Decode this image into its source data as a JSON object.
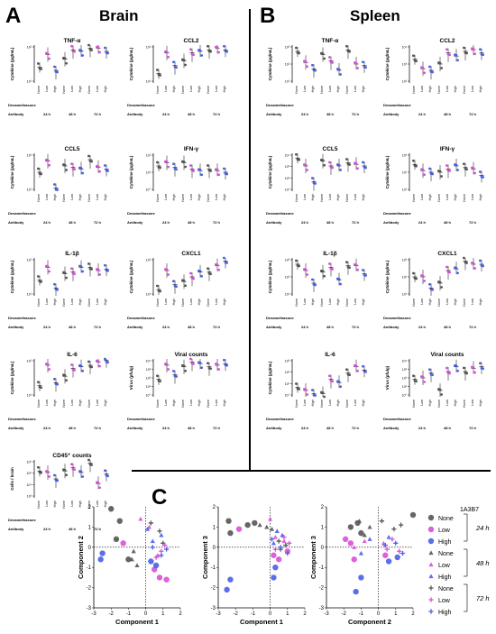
{
  "panels": {
    "A": {
      "letter": "A",
      "title": "Brain"
    },
    "B": {
      "letter": "B",
      "title": "Spleen"
    },
    "C": {
      "letter": "C"
    }
  },
  "row_labels": {
    "dexamethasone": "Dexamethasone",
    "antibody": "Antibody"
  },
  "dose_levels": [
    "None",
    "Low",
    "High"
  ],
  "timepoints": [
    "24 h",
    "48 h",
    "72 h"
  ],
  "colors": {
    "none": "#555555",
    "low": "#d94fd9",
    "high": "#4a5ee8",
    "axis": "#000000"
  },
  "chart_data": [
    {
      "type": "scatter",
      "panel": "A",
      "title": "TNF-α",
      "ylabel": "Cytokine (pg/mL)",
      "log_y": true,
      "ticks": [
        "10²",
        "10¹"
      ],
      "groups": [
        [
          1.4,
          2.2,
          1.2
        ],
        [
          1.9,
          2.5,
          2.4
        ],
        [
          2.6,
          2.6,
          2.4
        ]
      ]
    },
    {
      "type": "scatter",
      "panel": "A",
      "title": "CCL2",
      "ylabel": "Cytokine (pg/mL)",
      "log_y": true,
      "ticks": [
        "10²",
        "10¹"
      ],
      "groups": [
        [
          1.0,
          2.3,
          1.5
        ],
        [
          1.8,
          2.3,
          2.4
        ],
        [
          2.5,
          2.6,
          2.5
        ]
      ]
    },
    {
      "type": "scatter",
      "panel": "A",
      "title": "CCL5",
      "ylabel": "Cytokine (pg/mL)",
      "log_y": true,
      "ticks": [
        "10²",
        "10¹"
      ],
      "groups": [
        [
          1.6,
          2.3,
          0.6
        ],
        [
          2.0,
          1.9,
          1.8
        ],
        [
          2.4,
          1.9,
          1.8
        ]
      ]
    },
    {
      "type": "scatter",
      "panel": "A",
      "title": "IFN-γ",
      "ylabel": "Cytokine (pg/mL)",
      "log_y": true,
      "ticks": [
        "10²",
        "10¹",
        "10°"
      ],
      "groups": [
        [
          2.0,
          2.2,
          1.9
        ],
        [
          2.2,
          1.8,
          1.7
        ],
        [
          1.8,
          1.7,
          1.6
        ]
      ]
    },
    {
      "type": "scatter",
      "panel": "A",
      "title": "IL-1β",
      "ylabel": "Cytokine (pg/mL)",
      "log_y": true,
      "ticks": [
        "10²",
        "10¹"
      ],
      "groups": [
        [
          1.4,
          2.2,
          0.9
        ],
        [
          1.8,
          1.9,
          2.2
        ],
        [
          2.2,
          2.0,
          2.1
        ]
      ]
    },
    {
      "type": "scatter",
      "panel": "A",
      "title": "CXCL1",
      "ylabel": "Cytokine (pg/mL)",
      "log_y": true,
      "ticks": [
        "10²",
        "10¹"
      ],
      "groups": [
        [
          0.8,
          2.0,
          1.1
        ],
        [
          1.3,
          1.6,
          1.9
        ],
        [
          1.9,
          2.3,
          2.6
        ]
      ]
    },
    {
      "type": "scatter",
      "panel": "A",
      "title": "IL-6",
      "ylabel": "Cytokine (pg/mL)",
      "log_y": true,
      "ticks": [
        "10²",
        "10¹"
      ],
      "groups": [
        [
          1.1,
          2.4,
          1.3
        ],
        [
          1.7,
          2.2,
          2.3
        ],
        [
          2.4,
          2.6,
          2.7
        ]
      ]
    },
    {
      "type": "scatter",
      "panel": "A",
      "title": "Viral counts",
      "ylabel": "Virus (pfu/g)",
      "log_y": true,
      "ticks": [
        "10⁴",
        "10³",
        "10²",
        "10¹",
        "10°"
      ],
      "groups": [
        [
          1.5,
          2.4,
          1.8
        ],
        [
          2.3,
          2.6,
          2.5
        ],
        [
          2.3,
          2.4,
          2.5
        ]
      ]
    },
    {
      "type": "scatter",
      "panel": "A",
      "title": "CD45⁺ counts",
      "ylabel": "Cells / brain",
      "log_y": true,
      "ticks": [
        "10⁶",
        "10⁵",
        "10⁴",
        "10³"
      ],
      "groups": [
        [
          2.1,
          2.0,
          1.6
        ],
        [
          2.1,
          2.3,
          2.0
        ],
        [
          2.6,
          1.3,
          1.9
        ]
      ]
    },
    {
      "type": "scatter",
      "panel": "B",
      "title": "TNF-α",
      "ylabel": "Cytokine (pg/mL)",
      "log_y": true,
      "ticks": [
        "10³",
        "10²",
        "10¹"
      ],
      "groups": [
        [
          2.4,
          1.7,
          1.3
        ],
        [
          2.2,
          1.8,
          1.2
        ],
        [
          2.5,
          1.6,
          1.5
        ]
      ]
    },
    {
      "type": "scatter",
      "panel": "B",
      "title": "CCL2",
      "ylabel": "Cytokine (pg/mL)",
      "log_y": true,
      "ticks": [
        "10⁴",
        "10³",
        "10²"
      ],
      "groups": [
        [
          1.9,
          1.3,
          1.2
        ],
        [
          1.6,
          2.3,
          2.1
        ],
        [
          2.4,
          2.5,
          2.3
        ]
      ]
    },
    {
      "type": "scatter",
      "panel": "B",
      "title": "CCL5",
      "ylabel": "Cytokine (pg/mL)",
      "log_y": true,
      "ticks": [
        "10⁴",
        "10³",
        "10²",
        "10¹"
      ],
      "groups": [
        [
          2.5,
          2.0,
          1.0
        ],
        [
          2.3,
          2.0,
          2.0
        ],
        [
          2.2,
          2.1,
          2.0
        ]
      ]
    },
    {
      "type": "scatter",
      "panel": "B",
      "title": "IFN-γ",
      "ylabel": "Cytokine (pg/mL)",
      "log_y": true,
      "ticks": [
        "10³",
        "10²",
        "10¹"
      ],
      "groups": [
        [
          2.1,
          1.7,
          1.6
        ],
        [
          1.6,
          1.8,
          2.0
        ],
        [
          1.9,
          1.8,
          1.4
        ]
      ]
    },
    {
      "type": "scatter",
      "panel": "B",
      "title": "IL-1β",
      "ylabel": "Cytokine (pg/mL)",
      "log_y": true,
      "ticks": [
        "10³",
        "10²",
        "10¹"
      ],
      "groups": [
        [
          2.4,
          2.0,
          1.2
        ],
        [
          1.9,
          2.2,
          1.4
        ],
        [
          2.3,
          2.3,
          1.8
        ]
      ]
    },
    {
      "type": "scatter",
      "panel": "B",
      "title": "CXCL1",
      "ylabel": "Cytokine (pg/mL)",
      "log_y": true,
      "ticks": [
        "10³",
        "10²",
        "10¹"
      ],
      "groups": [
        [
          1.6,
          1.6,
          0.9
        ],
        [
          1.2,
          2.0,
          2.1
        ],
        [
          2.6,
          2.4,
          2.4
        ]
      ]
    },
    {
      "type": "scatter",
      "panel": "B",
      "title": "IL-6",
      "ylabel": "Cytokine (pg/mL)",
      "log_y": true,
      "ticks": [
        "10³",
        "10²",
        "10¹",
        "10°"
      ],
      "groups": [
        [
          1.0,
          0.8,
          0.6
        ],
        [
          0.6,
          1.5,
          1.3
        ],
        [
          1.9,
          2.3,
          2.1
        ]
      ]
    },
    {
      "type": "scatter",
      "panel": "B",
      "title": "Viral counts",
      "ylabel": "Virus (pfu/g)",
      "log_y": true,
      "ticks": [
        "10⁴",
        "10³",
        "10²",
        "10¹",
        "10°"
      ],
      "groups": [
        [
          1.5,
          1.6,
          1.9
        ],
        [
          0.8,
          2.0,
          2.3
        ],
        [
          2.0,
          2.2,
          2.3
        ]
      ]
    }
  ],
  "pca": {
    "ylabels": [
      "Component 2",
      "Component 3",
      "Component 3"
    ],
    "xlabels": [
      "Component 1",
      "Component 1",
      "Component 2"
    ],
    "x_ticks": [
      "-3",
      "-2",
      "-1",
      "0",
      "1",
      "2"
    ],
    "y_ticks": [
      "2",
      "1",
      "0",
      "-1",
      "-2",
      "-3"
    ],
    "plots": [
      {
        "points": [
          {
            "x": -2.0,
            "y": 1.9,
            "g": 0
          },
          {
            "x": -1.5,
            "y": 1.3,
            "g": 0
          },
          {
            "x": -1.0,
            "y": -0.6,
            "g": 0
          },
          {
            "x": -1.7,
            "y": 0.4,
            "g": 0
          },
          {
            "x": -1.3,
            "y": 0.2,
            "g": 1
          },
          {
            "x": 0.5,
            "y": -1.1,
            "g": 1
          },
          {
            "x": 0.8,
            "y": -1.5,
            "g": 1
          },
          {
            "x": 1.2,
            "y": -1.6,
            "g": 1
          },
          {
            "x": -2.5,
            "y": -0.3,
            "g": 2
          },
          {
            "x": -2.6,
            "y": -0.6,
            "g": 2
          },
          {
            "x": 0.3,
            "y": -0.7,
            "g": 2
          },
          {
            "x": 0.6,
            "y": -0.9,
            "g": 2
          },
          {
            "x": -0.7,
            "y": -0.2,
            "g": 3
          },
          {
            "x": -0.5,
            "y": -0.9,
            "g": 3
          },
          {
            "x": -0.8,
            "y": -0.6,
            "g": 3
          },
          {
            "x": -0.3,
            "y": 1.4,
            "g": 4
          },
          {
            "x": 0.2,
            "y": 1.0,
            "g": 4
          },
          {
            "x": 0.7,
            "y": -0.4,
            "g": 4
          },
          {
            "x": 0.1,
            "y": 0.9,
            "g": 5
          },
          {
            "x": 0.4,
            "y": 0.3,
            "g": 5
          },
          {
            "x": 0.9,
            "y": 0.6,
            "g": 5
          },
          {
            "x": 0.3,
            "y": 1.2,
            "g": 6
          },
          {
            "x": 0.8,
            "y": 0.8,
            "g": 6
          },
          {
            "x": 1.0,
            "y": 0.2,
            "g": 6
          },
          {
            "x": 0.6,
            "y": -0.5,
            "g": 7
          },
          {
            "x": 0.9,
            "y": -0.2,
            "g": 7
          },
          {
            "x": 1.1,
            "y": 0.1,
            "g": 7
          },
          {
            "x": 0.4,
            "y": 0.0,
            "g": 8
          },
          {
            "x": 0.9,
            "y": -0.4,
            "g": 8
          },
          {
            "x": 1.2,
            "y": -0.1,
            "g": 8
          }
        ]
      },
      {
        "points": [
          {
            "x": -2.4,
            "y": 1.3,
            "g": 0
          },
          {
            "x": -2.3,
            "y": 0.7,
            "g": 0
          },
          {
            "x": -1.3,
            "y": 1.1,
            "g": 0
          },
          {
            "x": -0.9,
            "y": 1.2,
            "g": 0
          },
          {
            "x": -1.8,
            "y": 0.9,
            "g": 1
          },
          {
            "x": 0.2,
            "y": -0.4,
            "g": 1
          },
          {
            "x": 0.5,
            "y": -0.6,
            "g": 1
          },
          {
            "x": 1.0,
            "y": -0.2,
            "g": 1
          },
          {
            "x": -2.3,
            "y": -1.6,
            "g": 2
          },
          {
            "x": -2.5,
            "y": -2.1,
            "g": 2
          },
          {
            "x": 0.3,
            "y": -1.0,
            "g": 2
          },
          {
            "x": 0.2,
            "y": -1.5,
            "g": 2
          },
          {
            "x": -0.2,
            "y": 1.0,
            "g": 3
          },
          {
            "x": -0.6,
            "y": 1.1,
            "g": 3
          },
          {
            "x": 0.1,
            "y": 0.9,
            "g": 3
          },
          {
            "x": 0.0,
            "y": 1.4,
            "g": 4
          },
          {
            "x": 0.3,
            "y": 0.5,
            "g": 4
          },
          {
            "x": 0.8,
            "y": 0.3,
            "g": 4
          },
          {
            "x": 0.4,
            "y": 0.8,
            "g": 5
          },
          {
            "x": 0.7,
            "y": 0.6,
            "g": 5
          },
          {
            "x": 0.2,
            "y": 0.2,
            "g": 5
          },
          {
            "x": 0.5,
            "y": 0.3,
            "g": 6
          },
          {
            "x": 0.9,
            "y": 0.1,
            "g": 6
          },
          {
            "x": 0.6,
            "y": -0.1,
            "g": 6
          },
          {
            "x": 0.8,
            "y": 0.5,
            "g": 7
          },
          {
            "x": 0.3,
            "y": -0.1,
            "g": 7
          },
          {
            "x": 1.1,
            "y": 0.2,
            "g": 7
          },
          {
            "x": 0.1,
            "y": 0.4,
            "g": 8
          },
          {
            "x": 0.6,
            "y": 0.0,
            "g": 8
          },
          {
            "x": 1.0,
            "y": -0.3,
            "g": 8
          }
        ]
      },
      {
        "points": [
          {
            "x": -1.6,
            "y": 1.0,
            "g": 0
          },
          {
            "x": -1.2,
            "y": 1.2,
            "g": 0
          },
          {
            "x": -1.0,
            "y": 0.7,
            "g": 0
          },
          {
            "x": 2.0,
            "y": 1.6,
            "g": 0
          },
          {
            "x": -1.6,
            "y": 0.2,
            "g": 1
          },
          {
            "x": -1.9,
            "y": 0.4,
            "g": 1
          },
          {
            "x": -1.4,
            "y": -0.6,
            "g": 1
          },
          {
            "x": 0.4,
            "y": -0.4,
            "g": 1
          },
          {
            "x": -1.0,
            "y": -1.5,
            "g": 2
          },
          {
            "x": -1.3,
            "y": -2.2,
            "g": 2
          },
          {
            "x": 1.1,
            "y": -0.5,
            "g": 2
          },
          {
            "x": 0.6,
            "y": -0.7,
            "g": 2
          },
          {
            "x": -1.1,
            "y": 1.3,
            "g": 3
          },
          {
            "x": -0.8,
            "y": 0.6,
            "g": 3
          },
          {
            "x": -0.5,
            "y": 1.0,
            "g": 3
          },
          {
            "x": -0.8,
            "y": 0.3,
            "g": 4
          },
          {
            "x": -1.4,
            "y": 0.0,
            "g": 4
          },
          {
            "x": 0.3,
            "y": 0.2,
            "g": 4
          },
          {
            "x": -0.5,
            "y": 0.4,
            "g": 5
          },
          {
            "x": -1.0,
            "y": -0.3,
            "g": 5
          },
          {
            "x": 0.6,
            "y": 0.5,
            "g": 5
          },
          {
            "x": 0.2,
            "y": 1.3,
            "g": 6
          },
          {
            "x": 0.9,
            "y": 0.9,
            "g": 6
          },
          {
            "x": 1.3,
            "y": 1.1,
            "g": 6
          },
          {
            "x": 0.8,
            "y": 0.4,
            "g": 7
          },
          {
            "x": 1.2,
            "y": -0.2,
            "g": 7
          },
          {
            "x": 0.5,
            "y": -0.1,
            "g": 7
          },
          {
            "x": 0.4,
            "y": 0.1,
            "g": 8
          },
          {
            "x": 1.0,
            "y": 0.2,
            "g": 8
          },
          {
            "x": 1.4,
            "y": -0.3,
            "g": 8
          }
        ]
      }
    ]
  },
  "legend": {
    "antibody": "1A3B7",
    "labels": [
      "None",
      "Low",
      "High"
    ],
    "timepoints": [
      "24 h",
      "48 h",
      "72 h"
    ]
  }
}
